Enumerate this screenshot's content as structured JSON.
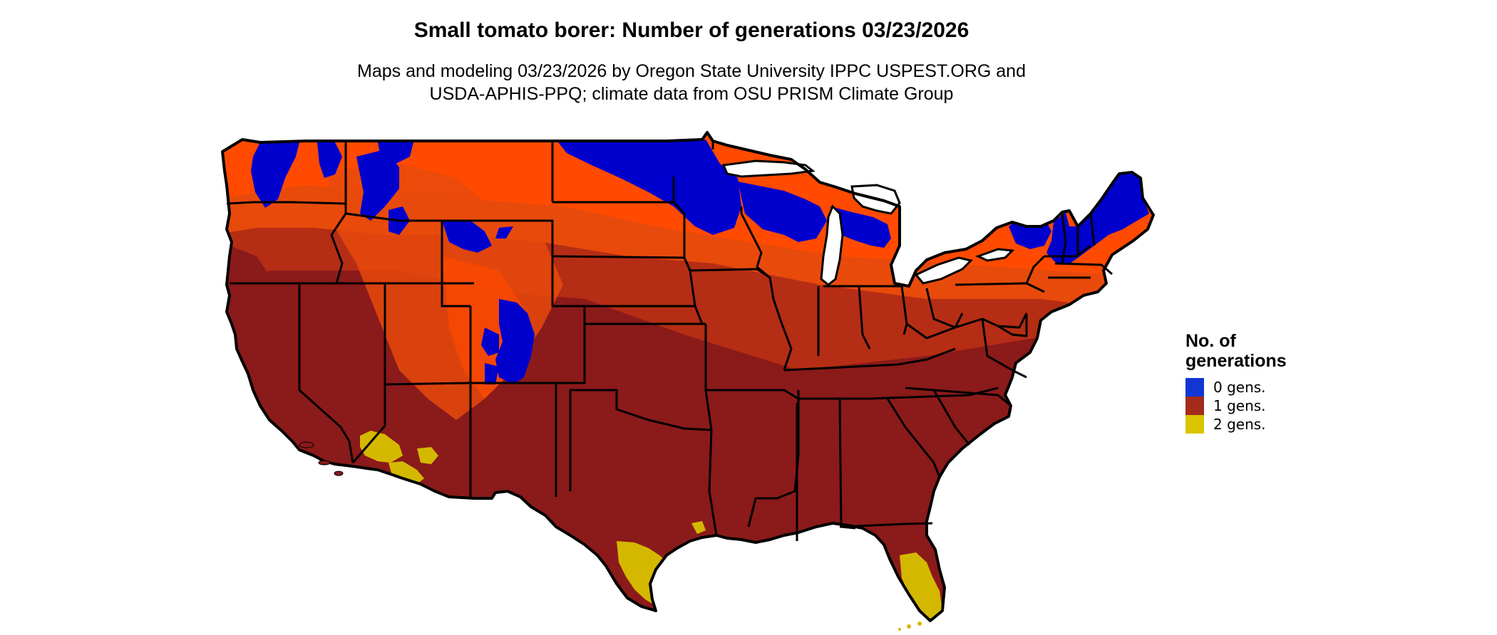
{
  "title": "Small tomato borer: Number of generations 03/23/2026",
  "subtitle": {
    "line1": "Maps and modeling 03/23/2026 by Oregon State University IPPC USPEST.ORG and",
    "line2": "USDA-APHIS-PPQ; climate data from OSU PRISM Climate Group"
  },
  "legend": {
    "title_line1": "No. of",
    "title_line2": "generations",
    "items": [
      {
        "label": "0 gens.",
        "color": "#1236d4"
      },
      {
        "label": "1 gens.",
        "color": "#a32b1c"
      },
      {
        "label": "2 gens.",
        "color": "#d8c400"
      }
    ]
  },
  "map_colors": {
    "zero_gens": "#0000cd",
    "one_gen_dark": "#8b1a1a",
    "one_gen_mid": "#b52d14",
    "one_gen_light": "#e84a0c",
    "one_gen_orange": "#ff4a00",
    "two_gens": "#d4b800",
    "border": "#000000"
  }
}
